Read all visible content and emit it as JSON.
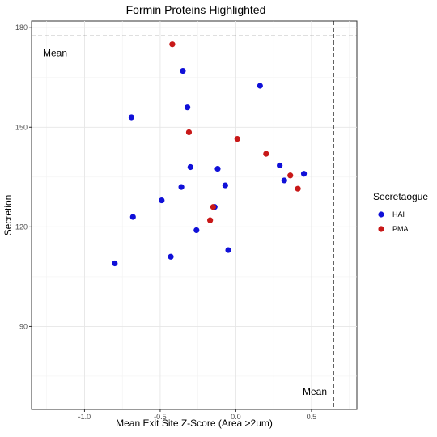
{
  "chart_data": {
    "type": "scatter",
    "title": "Formin Proteins Highlighted",
    "xlabel": "Mean Exit Site Z-Score (Area >2um)",
    "ylabel": "Secretion",
    "xlim": [
      -1.35,
      0.8
    ],
    "ylim": [
      65,
      182
    ],
    "x_ticks": [
      -1.0,
      -0.5,
      0.0,
      0.5
    ],
    "x_tick_labels": [
      "-1.0",
      "-0.5",
      "0.0",
      "0.5"
    ],
    "y_ticks": [
      90,
      120,
      150,
      180
    ],
    "y_tick_labels": [
      "90",
      "120",
      "150",
      "180"
    ],
    "grid": true,
    "legend": {
      "title": "Secretaogue",
      "placement": "right",
      "entries": [
        {
          "name": "HAI",
          "color": "#1010d8"
        },
        {
          "name": "PMA",
          "color": "#c81818"
        }
      ]
    },
    "reference_lines": [
      {
        "orientation": "horizontal",
        "value": 177.5,
        "label": "Mean",
        "style": "dashed"
      },
      {
        "orientation": "vertical",
        "value": 0.645,
        "label": "Mean",
        "style": "dashed"
      }
    ],
    "series": [
      {
        "name": "HAI",
        "color": "#1010d8",
        "points": [
          {
            "x": -0.35,
            "y": 167
          },
          {
            "x": 0.16,
            "y": 162.5
          },
          {
            "x": -0.32,
            "y": 156
          },
          {
            "x": -0.69,
            "y": 153
          },
          {
            "x": -0.3,
            "y": 138
          },
          {
            "x": -0.12,
            "y": 137.5
          },
          {
            "x": 0.29,
            "y": 138.5
          },
          {
            "x": 0.45,
            "y": 136
          },
          {
            "x": 0.32,
            "y": 134
          },
          {
            "x": -0.36,
            "y": 132
          },
          {
            "x": -0.07,
            "y": 132.5
          },
          {
            "x": -0.49,
            "y": 128
          },
          {
            "x": -0.14,
            "y": 126
          },
          {
            "x": -0.68,
            "y": 123
          },
          {
            "x": -0.26,
            "y": 119
          },
          {
            "x": -0.05,
            "y": 113
          },
          {
            "x": -0.43,
            "y": 111
          },
          {
            "x": -0.8,
            "y": 109
          }
        ]
      },
      {
        "name": "PMA",
        "color": "#c81818",
        "points": [
          {
            "x": -0.42,
            "y": 175
          },
          {
            "x": -0.31,
            "y": 148.5
          },
          {
            "x": 0.01,
            "y": 146.5
          },
          {
            "x": 0.2,
            "y": 142
          },
          {
            "x": 0.36,
            "y": 135.5
          },
          {
            "x": 0.41,
            "y": 131.5
          },
          {
            "x": -0.15,
            "y": 126
          },
          {
            "x": -0.17,
            "y": 122
          }
        ]
      }
    ]
  }
}
